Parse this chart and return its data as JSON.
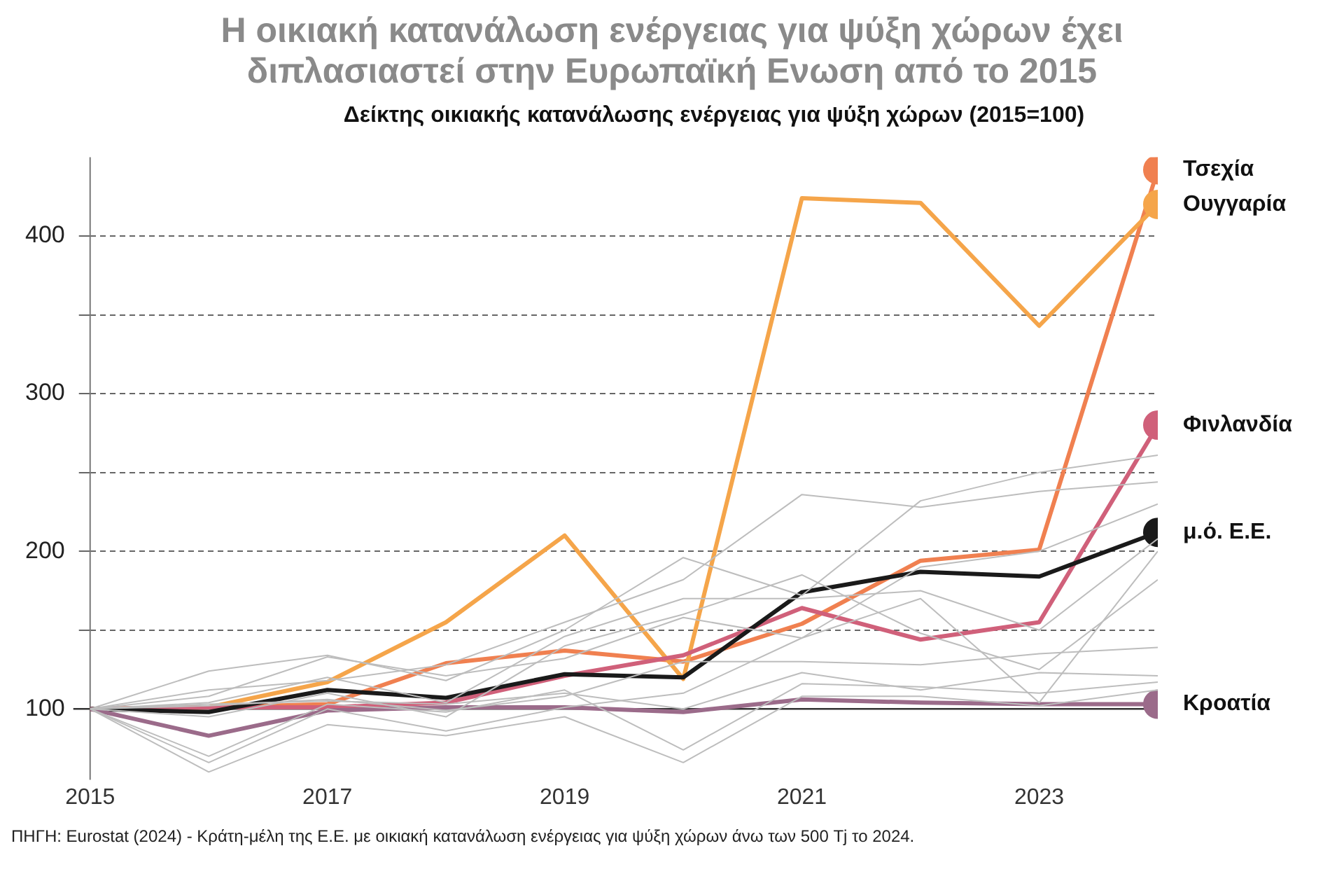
{
  "chart_data": {
    "type": "line",
    "title": "Η οικιακή κατανάλωση ενέργειας για ψύξη χώρων έχει διπλασιαστεί στην Ευρωπαϊκή Ενωση από το 2015",
    "subtitle": "Δείκτης οικιακής κατανάλωσης ενέργειας για ψύξη χώρων (2015=100)",
    "annotations": [
      "ΠΗΓΗ: Eurostat (2024) - Κράτη-μέλη της Ε.Ε. με οικιακή κατανάλωση ενέργειας για ψύξη χώρων άνω των 500 Tj το 2024."
    ],
    "x": [
      2015,
      2016,
      2017,
      2018,
      2019,
      2020,
      2021,
      2022,
      2023,
      2024
    ],
    "xlim": [
      2015,
      2024
    ],
    "xticks": [
      2015,
      2017,
      2019,
      2021,
      2023
    ],
    "ylim": [
      55,
      450
    ],
    "yticks": [
      100,
      {
        "value": 150,
        "label": null
      },
      200,
      {
        "value": 250,
        "label": null
      },
      300,
      {
        "value": 350,
        "label": null
      },
      400
    ],
    "grid": "y",
    "ref_lines": [
      {
        "axis": "y",
        "value": 100,
        "color": "#333333"
      }
    ],
    "series": [
      {
        "color": "#bdbdbd",
        "values": [
          100,
          124,
          134,
          118,
          150,
          196,
          172,
          232,
          250,
          261
        ]
      },
      {
        "color": "#bdbdbd",
        "values": [
          100,
          112,
          118,
          128,
          155,
          182,
          236,
          228,
          238,
          244
        ]
      },
      {
        "color": "#bdbdbd",
        "values": [
          100,
          108,
          133,
          121,
          132,
          158,
          145,
          190,
          200,
          230
        ]
      },
      {
        "color": "#bdbdbd",
        "values": [
          100,
          104,
          120,
          104,
          146,
          170,
          170,
          175,
          150,
          208
        ]
      },
      {
        "color": "#bdbdbd",
        "values": [
          100,
          95,
          110,
          95,
          140,
          160,
          185,
          148,
          125,
          182
        ]
      },
      {
        "color": "#bdbdbd",
        "values": [
          100,
          102,
          106,
          99,
          108,
          130,
          130,
          128,
          135,
          139
        ]
      },
      {
        "color": "#bdbdbd",
        "values": [
          100,
          103,
          105,
          103,
          110,
          100,
          123,
          112,
          123,
          121
        ]
      },
      {
        "color": "#bdbdbd",
        "values": [
          100,
          70,
          103,
          98,
          112,
          74,
          116,
          114,
          110,
          117
        ]
      },
      {
        "color": "#bdbdbd",
        "values": [
          100,
          60,
          90,
          83,
          95,
          66,
          108,
          108,
          102,
          112
        ]
      },
      {
        "color": "#bdbdbd",
        "values": [
          100,
          66,
          100,
          86,
          101,
          110,
          145,
          170,
          104,
          200
        ]
      },
      {
        "name": "Κροατία",
        "color": "#9b6b8a",
        "values": [
          100,
          83,
          99,
          101,
          101,
          98,
          106,
          104,
          103,
          103
        ]
      },
      {
        "name": "μ.ό. Ε.Ε.",
        "color": "#1a1a1a",
        "values": [
          100,
          98,
          112,
          107,
          122,
          120,
          174,
          187,
          184,
          212
        ]
      },
      {
        "name": "Φινλανδία",
        "color": "#d0607a",
        "values": [
          100,
          101,
          101,
          104,
          121,
          134,
          164,
          144,
          155,
          280
        ]
      },
      {
        "name": "Ουγγαρία",
        "color": "#f5a54a",
        "values": [
          100,
          101,
          117,
          155,
          210,
          119,
          424,
          421,
          343,
          420
        ]
      },
      {
        "name": "Τσεχία",
        "color": "#f08050",
        "values": [
          100,
          101,
          103,
          129,
          137,
          130,
          154,
          194,
          201,
          442
        ]
      }
    ]
  }
}
